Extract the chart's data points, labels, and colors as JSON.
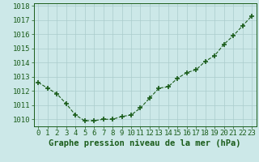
{
  "hours": [
    0,
    1,
    2,
    3,
    4,
    5,
    6,
    7,
    8,
    9,
    10,
    11,
    12,
    13,
    14,
    15,
    16,
    17,
    18,
    19,
    20,
    21,
    22,
    23
  ],
  "pressure": [
    1012.6,
    1012.2,
    1011.8,
    1011.1,
    1010.3,
    1009.9,
    1009.9,
    1010.0,
    1010.0,
    1010.2,
    1010.3,
    1010.8,
    1011.5,
    1012.2,
    1012.3,
    1012.9,
    1013.3,
    1013.5,
    1014.1,
    1014.5,
    1015.3,
    1015.9,
    1016.6,
    1017.3
  ],
  "line_color": "#1a5c1a",
  "marker_color": "#1a5c1a",
  "bg_color": "#cce8e8",
  "grid_color": "#aacccc",
  "title": "Graphe pression niveau de la mer (hPa)",
  "title_color": "#1a5c1a",
  "ylim_min": 1009.5,
  "ylim_max": 1018.2,
  "xlim_min": -0.5,
  "xlim_max": 23.5,
  "yticks": [
    1010,
    1011,
    1012,
    1013,
    1014,
    1015,
    1016,
    1017,
    1018
  ],
  "xticks": [
    0,
    1,
    2,
    3,
    4,
    5,
    6,
    7,
    8,
    9,
    10,
    11,
    12,
    13,
    14,
    15,
    16,
    17,
    18,
    19,
    20,
    21,
    22,
    23
  ],
  "tick_label_color": "#1a5c1a",
  "tick_label_fontsize": 6.5,
  "title_fontsize": 7.5,
  "line_width": 0.8,
  "marker_size": 4
}
